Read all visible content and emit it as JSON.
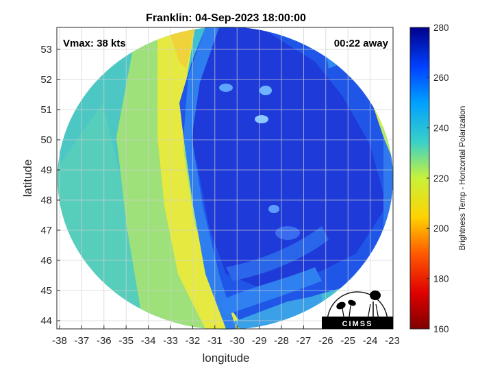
{
  "title": "Franklin: 04-Sep-2023 18:00:00",
  "vmax_label": "Vmax: 38 kts",
  "time_away_label": "00:22 away",
  "x_axis": {
    "label": "longitude",
    "range": [
      -38,
      -23
    ],
    "ticks": [
      "-38",
      "-37",
      "-36",
      "-35",
      "-34",
      "-33",
      "-32",
      "-31",
      "-30",
      "-29",
      "-28",
      "-27",
      "-26",
      "-25",
      "-24",
      "-23"
    ]
  },
  "y_axis": {
    "label": "latitude",
    "range": [
      43.8,
      53.7
    ],
    "ticks": [
      "44",
      "45",
      "46",
      "47",
      "48",
      "49",
      "50",
      "51",
      "52",
      "53"
    ]
  },
  "colorbar": {
    "label": "Brightness Temp - Horizontal Polarization",
    "range": [
      160,
      280
    ],
    "ticks": [
      "280",
      "260",
      "240",
      "220",
      "200",
      "180",
      "160"
    ],
    "colormap": "jet"
  },
  "logo": {
    "text": "CIMSS"
  },
  "colors": {
    "warm_band": "#f0e53a",
    "cold_core": "#1f33dc",
    "background_field": "#3fbfd0"
  }
}
